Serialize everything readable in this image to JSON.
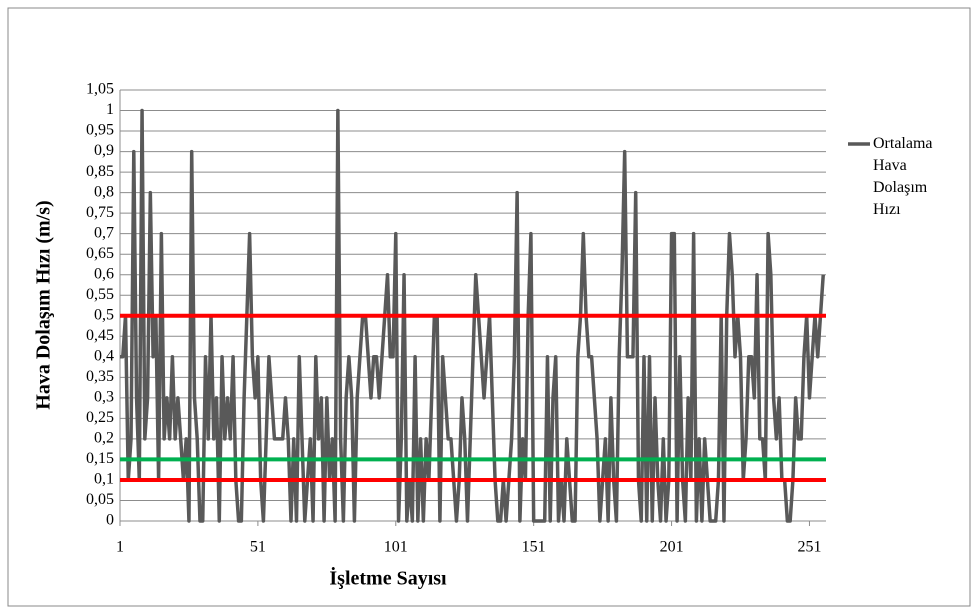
{
  "chart_data": {
    "type": "line",
    "y_label": "Hava Dolaşım Hızı (m/s)",
    "x_label": "İşletme Sayısı",
    "x": [
      1,
      2,
      3,
      4,
      5,
      6,
      7,
      8,
      9,
      10,
      11,
      12,
      13,
      14,
      15,
      16,
      17,
      18,
      19,
      20,
      21,
      22,
      23,
      24,
      25,
      26,
      27,
      28,
      29,
      30,
      31,
      32,
      33,
      34,
      35,
      36,
      37,
      38,
      39,
      40,
      41,
      42,
      43,
      44,
      45,
      46,
      47,
      48,
      49,
      50,
      51,
      52,
      53,
      54,
      55,
      56,
      57,
      58,
      59,
      60,
      61,
      62,
      63,
      64,
      65,
      66,
      67,
      68,
      69,
      70,
      71,
      72,
      73,
      74,
      75,
      76,
      77,
      78,
      79,
      80,
      81,
      82,
      83,
      84,
      85,
      86,
      87,
      88,
      89,
      90,
      91,
      92,
      93,
      94,
      95,
      96,
      97,
      98,
      99,
      100,
      101,
      102,
      103,
      104,
      105,
      106,
      107,
      108,
      109,
      110,
      111,
      112,
      113,
      114,
      115,
      116,
      117,
      118,
      119,
      120,
      121,
      122,
      123,
      124,
      125,
      126,
      127,
      128,
      129,
      130,
      131,
      132,
      133,
      134,
      135,
      136,
      137,
      138,
      139,
      140,
      141,
      142,
      143,
      144,
      145,
      146,
      147,
      148,
      149,
      150,
      151,
      152,
      153,
      154,
      155,
      156,
      157,
      158,
      159,
      160,
      161,
      162,
      163,
      164,
      165,
      166,
      167,
      168,
      169,
      170,
      171,
      172,
      173,
      174,
      175,
      176,
      177,
      178,
      179,
      180,
      181,
      182,
      183,
      184,
      185,
      186,
      187,
      188,
      189,
      190,
      191,
      192,
      193,
      194,
      195,
      196,
      197,
      198,
      199,
      200,
      201,
      202,
      203,
      204,
      205,
      206,
      207,
      208,
      209,
      210,
      211,
      212,
      213,
      214,
      215,
      216,
      217,
      218,
      219,
      220,
      221,
      222,
      223,
      224,
      225,
      226,
      227,
      228,
      229,
      230,
      231,
      232,
      233,
      234,
      235,
      236,
      237,
      238,
      239,
      240,
      241,
      242,
      243,
      244,
      245,
      246,
      247,
      248,
      249,
      250,
      251,
      252,
      253,
      254,
      255,
      256
    ],
    "series": [
      {
        "name": "Ortalama Hava Dolaşım Hızı",
        "color": "#595959",
        "values": [
          0.4,
          0.4,
          0.5,
          0.1,
          0.2,
          0.9,
          0.3,
          0.1,
          1,
          0.2,
          0.3,
          0.8,
          0.4,
          0.5,
          0.1,
          0.7,
          0.2,
          0.3,
          0.2,
          0.4,
          0.2,
          0.3,
          0.2,
          0.1,
          0.2,
          0,
          0.9,
          0.3,
          0.2,
          0,
          0,
          0.4,
          0.2,
          0.5,
          0.2,
          0.3,
          0,
          0.4,
          0.2,
          0.3,
          0.2,
          0.4,
          0.1,
          0,
          0,
          0.3,
          0.5,
          0.7,
          0.4,
          0.3,
          0.4,
          0.1,
          0,
          0.2,
          0.4,
          0.3,
          0.2,
          0.2,
          0.2,
          0.2,
          0.3,
          0.2,
          0,
          0.2,
          0,
          0.4,
          0.2,
          0,
          0.1,
          0.2,
          0,
          0.4,
          0.2,
          0.3,
          0,
          0.3,
          0.1,
          0.2,
          0,
          1,
          0.2,
          0,
          0.3,
          0.4,
          0.3,
          0,
          0.3,
          0.4,
          0.5,
          0.5,
          0.4,
          0.3,
          0.4,
          0.4,
          0.3,
          0.4,
          0.5,
          0.6,
          0.4,
          0.4,
          0.7,
          0,
          0.2,
          0.6,
          0,
          0.1,
          0,
          0.4,
          0,
          0.2,
          0,
          0.2,
          0.1,
          0.3,
          0.5,
          0.5,
          0,
          0.4,
          0.3,
          0.2,
          0.2,
          0.1,
          0,
          0.1,
          0.3,
          0.2,
          0,
          0.2,
          0.4,
          0.6,
          0.5,
          0.4,
          0.3,
          0.4,
          0.5,
          0.3,
          0.1,
          0,
          0,
          0.1,
          0,
          0.1,
          0.2,
          0.4,
          0.8,
          0,
          0.2,
          0.1,
          0.5,
          0.7,
          0,
          0,
          0,
          0,
          0,
          0.4,
          0,
          0.3,
          0.4,
          0,
          0.1,
          0,
          0.2,
          0.1,
          0,
          0,
          0.4,
          0.5,
          0.7,
          0.5,
          0.4,
          0.4,
          0.3,
          0.2,
          0,
          0.1,
          0.2,
          0,
          0.3,
          0.1,
          0,
          0.4,
          0.6,
          0.9,
          0.4,
          0.4,
          0.4,
          0.8,
          0.1,
          0,
          0.4,
          0,
          0.4,
          0,
          0.3,
          0.1,
          0,
          0.2,
          0,
          0.1,
          0.7,
          0.7,
          0,
          0.4,
          0.1,
          0,
          0.3,
          0.1,
          0.7,
          0,
          0.2,
          0,
          0.2,
          0.1,
          0,
          0,
          0,
          0.1,
          0.5,
          0,
          0.5,
          0.7,
          0.6,
          0.4,
          0.5,
          0.4,
          0.1,
          0.2,
          0.4,
          0.4,
          0.3,
          0.6,
          0.2,
          0.2,
          0.1,
          0.7,
          0.6,
          0.3,
          0.2,
          0.3,
          0.1,
          0.1,
          0,
          0,
          0.1,
          0.3,
          0.2,
          0.2,
          0.4,
          0.5,
          0.3,
          0.4,
          0.5,
          0.4,
          0.5,
          0.6
        ]
      }
    ],
    "reference_lines": [
      {
        "value": 0.5,
        "color": "#ff0000"
      },
      {
        "value": 0.1,
        "color": "#ff0000"
      },
      {
        "value": 0.15,
        "color": "#00b050"
      }
    ],
    "xlim": [
      1,
      257
    ],
    "xticks": [
      1,
      51,
      101,
      151,
      201,
      251
    ],
    "ylim": [
      0,
      1.05
    ],
    "yticks": [
      0,
      {
        "value": 0.05,
        "label": "0,05"
      },
      {
        "value": 0.1,
        "label": "0,1"
      },
      {
        "value": 0.15,
        "label": "0,15"
      },
      {
        "value": 0.2,
        "label": "0,2"
      },
      {
        "value": 0.25,
        "label": "0,25"
      },
      {
        "value": 0.3,
        "label": "0,3"
      },
      {
        "value": 0.35,
        "label": "0,35"
      },
      {
        "value": 0.4,
        "label": "0,4"
      },
      {
        "value": 0.45,
        "label": "0,45"
      },
      {
        "value": 0.5,
        "label": "0,5"
      },
      {
        "value": 0.55,
        "label": "0,55"
      },
      {
        "value": 0.6,
        "label": "0,6"
      },
      {
        "value": 0.65,
        "label": "0,65"
      },
      {
        "value": 0.7,
        "label": "0,7"
      },
      {
        "value": 0.75,
        "label": "0,75"
      },
      {
        "value": 0.8,
        "label": "0,8"
      },
      {
        "value": 0.85,
        "label": "0,85"
      },
      {
        "value": 0.9,
        "label": "0,9"
      },
      {
        "value": 0.95,
        "label": "0,95"
      },
      1,
      {
        "value": 1.05,
        "label": "1,05"
      }
    ],
    "grid": true,
    "legend": "right"
  }
}
